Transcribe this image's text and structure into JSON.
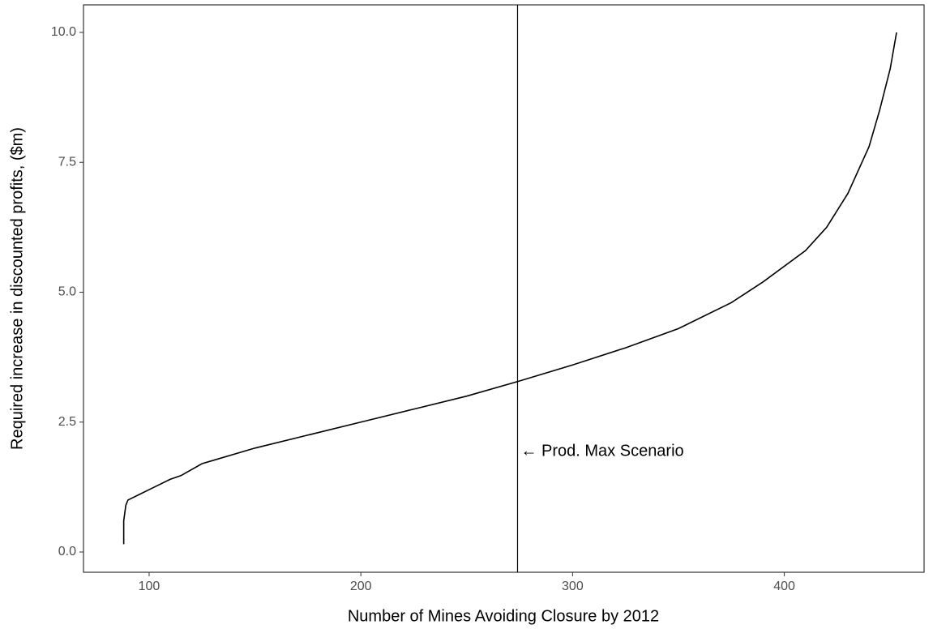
{
  "chart_data": {
    "type": "line",
    "x_label": "Number of Mines Avoiding Closure by 2012",
    "y_label": "Required increase in discounted profits, ($m)",
    "x": [
      88,
      88,
      89,
      90,
      95,
      100,
      110,
      115,
      125,
      150,
      175,
      200,
      225,
      250,
      274,
      300,
      325,
      350,
      375,
      390,
      410,
      420,
      430,
      440,
      445,
      450,
      453
    ],
    "series": [
      {
        "color": "#000000",
        "values": [
          0.15,
          0.6,
          0.9,
          1.0,
          1.1,
          1.2,
          1.4,
          1.47,
          1.7,
          2.0,
          2.25,
          2.5,
          2.75,
          3.0,
          3.28,
          3.6,
          3.93,
          4.3,
          4.8,
          5.2,
          5.8,
          6.25,
          6.9,
          7.8,
          8.5,
          9.3,
          10.0
        ]
      }
    ],
    "xlim": [
      69,
      466
    ],
    "xticks": [
      100,
      200,
      300,
      400
    ],
    "ylim": [
      -0.39,
      10.53
    ],
    "yticks": [
      {
        "value": 0,
        "label": "0.0"
      },
      2.5,
      {
        "value": 5,
        "label": "5.0"
      },
      7.5,
      {
        "value": 10,
        "label": "10.0"
      }
    ],
    "vline": 274,
    "annotation": {
      "text": "← Prod. Max Scenario",
      "x": 274,
      "y": 1.93
    },
    "grid": false
  }
}
